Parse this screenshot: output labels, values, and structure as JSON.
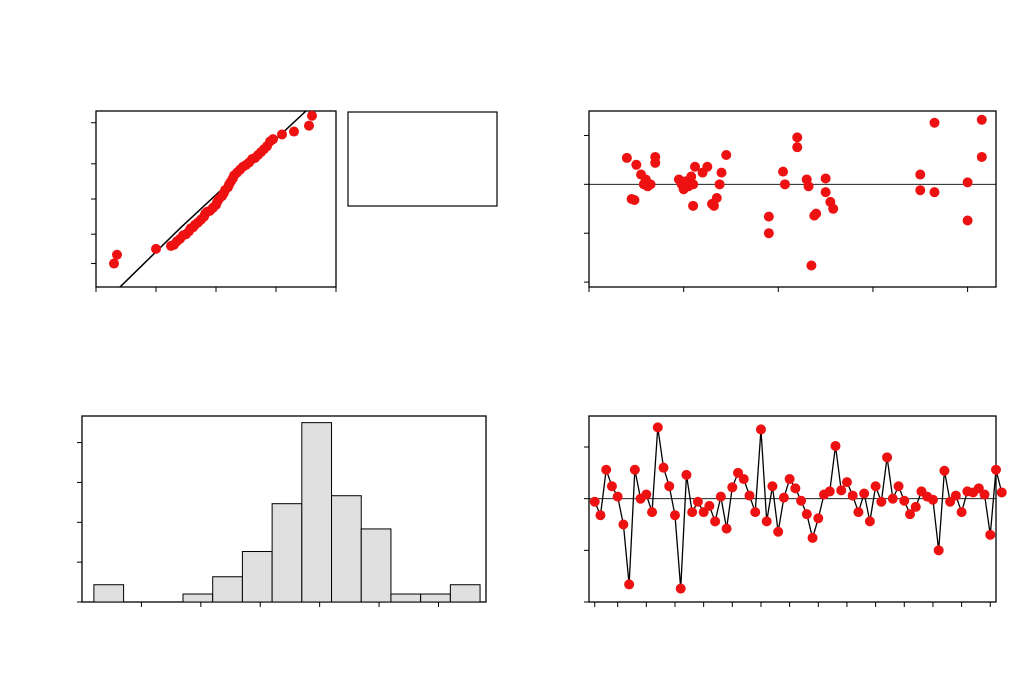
{
  "colors": {
    "point": "#ee1111",
    "bar_fill": "#e0e0e0",
    "line": "#000000",
    "frame": "#000000"
  },
  "chart_data": [
    {
      "type": "scatter",
      "name": "normal-probability-plot",
      "xlim": [
        -3,
        1
      ],
      "ylim": [
        0,
        3
      ],
      "x_ticks": [
        -3,
        -2,
        -1,
        0,
        1
      ],
      "y_ticks": [
        0.4,
        0.9,
        1.5,
        2.1,
        2.8
      ],
      "fit_line": [
        [
          -2.6,
          0
        ],
        [
          -1.6,
          1
        ],
        [
          0.5,
          3
        ]
      ],
      "points": [
        [
          -2.7,
          0.4
        ],
        [
          -2.65,
          0.55
        ],
        [
          -2.0,
          0.65
        ],
        [
          -1.75,
          0.7
        ],
        [
          -1.7,
          0.72
        ],
        [
          -1.65,
          0.78
        ],
        [
          -1.6,
          0.82
        ],
        [
          -1.55,
          0.88
        ],
        [
          -1.5,
          0.9
        ],
        [
          -1.45,
          0.95
        ],
        [
          -1.42,
          1.0
        ],
        [
          -1.38,
          1.02
        ],
        [
          -1.35,
          1.06
        ],
        [
          -1.3,
          1.1
        ],
        [
          -1.25,
          1.15
        ],
        [
          -1.2,
          1.2
        ],
        [
          -1.18,
          1.25
        ],
        [
          -1.15,
          1.28
        ],
        [
          -1.1,
          1.3
        ],
        [
          -1.05,
          1.35
        ],
        [
          -1.0,
          1.4
        ],
        [
          -0.98,
          1.45
        ],
        [
          -0.95,
          1.5
        ],
        [
          -0.9,
          1.55
        ],
        [
          -0.87,
          1.6
        ],
        [
          -0.85,
          1.65
        ],
        [
          -0.8,
          1.7
        ],
        [
          -0.78,
          1.75
        ],
        [
          -0.75,
          1.8
        ],
        [
          -0.72,
          1.85
        ],
        [
          -0.7,
          1.9
        ],
        [
          -0.65,
          1.95
        ],
        [
          -0.6,
          2.0
        ],
        [
          -0.55,
          2.05
        ],
        [
          -0.5,
          2.08
        ],
        [
          -0.45,
          2.12
        ],
        [
          -0.4,
          2.18
        ],
        [
          -0.35,
          2.2
        ],
        [
          -0.3,
          2.25
        ],
        [
          -0.25,
          2.3
        ],
        [
          -0.2,
          2.35
        ],
        [
          -0.15,
          2.4
        ],
        [
          -0.1,
          2.48
        ],
        [
          -0.05,
          2.52
        ],
        [
          0.1,
          2.6
        ],
        [
          0.3,
          2.65
        ],
        [
          0.55,
          2.75
        ],
        [
          0.6,
          2.92
        ]
      ]
    },
    {
      "type": "scatter",
      "name": "residuals-vs-fits",
      "xlim": [
        0,
        4.3
      ],
      "ylim": [
        -1.05,
        0.75
      ],
      "x_ticks": [
        0,
        1,
        2,
        3,
        4
      ],
      "y_ticks": [
        -1,
        -0.5,
        0,
        0.5
      ],
      "ref_line": 0,
      "points": [
        [
          0.4,
          0.27
        ],
        [
          0.5,
          0.2
        ],
        [
          0.55,
          0.1
        ],
        [
          0.58,
          0.0
        ],
        [
          0.6,
          0.05
        ],
        [
          0.62,
          -0.02
        ],
        [
          0.65,
          0.0
        ],
        [
          0.7,
          0.28
        ],
        [
          0.7,
          0.22
        ],
        [
          0.45,
          -0.15
        ],
        [
          0.48,
          -0.16
        ],
        [
          0.95,
          0.05
        ],
        [
          0.98,
          0.0
        ],
        [
          1.0,
          -0.05
        ],
        [
          1.02,
          0.03
        ],
        [
          1.05,
          -0.02
        ],
        [
          1.08,
          0.08
        ],
        [
          1.1,
          0.0
        ],
        [
          1.12,
          0.18
        ],
        [
          1.2,
          0.12
        ],
        [
          1.25,
          0.18
        ],
        [
          1.3,
          -0.2
        ],
        [
          1.32,
          -0.22
        ],
        [
          1.35,
          -0.14
        ],
        [
          1.38,
          0.0
        ],
        [
          1.4,
          0.12
        ],
        [
          1.1,
          -0.22
        ],
        [
          1.45,
          0.3
        ],
        [
          1.9,
          -0.33
        ],
        [
          1.9,
          -0.5
        ],
        [
          2.05,
          0.13
        ],
        [
          2.07,
          0.0
        ],
        [
          2.2,
          0.48
        ],
        [
          2.2,
          0.38
        ],
        [
          2.3,
          0.05
        ],
        [
          2.32,
          -0.02
        ],
        [
          2.35,
          -0.83
        ],
        [
          2.38,
          -0.32
        ],
        [
          2.4,
          -0.3
        ],
        [
          2.5,
          0.06
        ],
        [
          2.5,
          -0.08
        ],
        [
          2.55,
          -0.18
        ],
        [
          2.58,
          -0.25
        ],
        [
          3.5,
          0.1
        ],
        [
          3.5,
          -0.06
        ],
        [
          3.65,
          0.63
        ],
        [
          3.65,
          -0.08
        ],
        [
          4.0,
          0.02
        ],
        [
          4.0,
          -0.37
        ],
        [
          4.15,
          0.66
        ],
        [
          4.15,
          0.28
        ]
      ]
    },
    {
      "type": "bar",
      "name": "histogram",
      "xlim": [
        -2.0,
        1.4
      ],
      "ylim": [
        0,
        14
      ],
      "x_ticks": [
        -1.5,
        -1.0,
        -0.5,
        0.0,
        0.5,
        1.0
      ],
      "y_ticks": [
        0,
        3,
        6,
        9,
        12
      ],
      "bin_width": 0.25,
      "bins": [
        {
          "start": -1.9,
          "value": 1.3
        },
        {
          "start": -1.65,
          "value": 0
        },
        {
          "start": -1.4,
          "value": 0
        },
        {
          "start": -1.15,
          "value": 0.6
        },
        {
          "start": -0.9,
          "value": 1.9
        },
        {
          "start": -0.65,
          "value": 3.8
        },
        {
          "start": -0.4,
          "value": 7.4
        },
        {
          "start": -0.15,
          "value": 13.5
        },
        {
          "start": 0.1,
          "value": 8.0
        },
        {
          "start": 0.35,
          "value": 5.5
        },
        {
          "start": 0.6,
          "value": 0.6
        },
        {
          "start": 0.85,
          "value": 0.6
        },
        {
          "start": 1.1,
          "value": 1.3
        }
      ]
    },
    {
      "type": "line",
      "name": "residuals-vs-order",
      "xlim": [
        0,
        71
      ],
      "ylim": [
        -1,
        0.8
      ],
      "x_ticks": [
        1,
        5,
        10,
        15,
        20,
        25,
        30,
        35,
        40,
        45,
        50,
        55,
        60,
        65,
        70
      ],
      "y_ticks": [
        -1,
        -0.5,
        0,
        0.5
      ],
      "ref_line": 0,
      "values": [
        -0.03,
        -0.16,
        0.28,
        0.12,
        0.02,
        -0.25,
        -0.83,
        0.28,
        0.0,
        0.04,
        -0.13,
        0.69,
        0.3,
        0.12,
        -0.16,
        -0.87,
        0.23,
        -0.13,
        -0.03,
        -0.13,
        -0.07,
        -0.22,
        0.02,
        -0.29,
        0.11,
        0.25,
        0.19,
        0.03,
        -0.13,
        0.67,
        -0.22,
        0.12,
        -0.32,
        0.01,
        0.19,
        0.1,
        -0.02,
        -0.15,
        -0.38,
        -0.19,
        0.04,
        0.07,
        0.51,
        0.08,
        0.16,
        0.03,
        -0.13,
        0.05,
        -0.22,
        0.12,
        -0.03,
        0.4,
        0.0,
        0.12,
        -0.02,
        -0.15,
        -0.08,
        0.07,
        0.02,
        -0.01,
        -0.5,
        0.27,
        -0.03,
        0.03,
        -0.13,
        0.07,
        0.06,
        0.1,
        0.04,
        -0.35,
        0.28,
        0.06
      ]
    }
  ]
}
